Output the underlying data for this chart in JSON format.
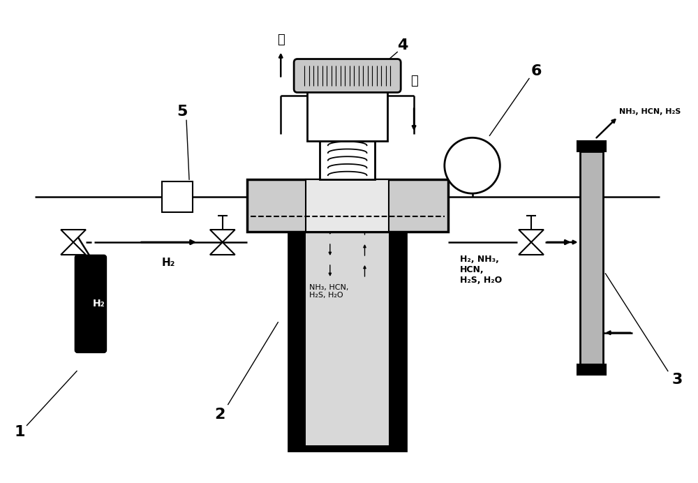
{
  "bg_color": "#ffffff",
  "H2_cylinder_label": "H₂",
  "H2_flow_label": "H₂",
  "H2_products_label": "H₂, NH₃,\nHCN,\nH₂S, H₂O",
  "reactor_contents_label": "NH₃, HCN,\nH₂S, H₂O",
  "absorber_top_label": "NH₃, HCN, H₂S",
  "water_left_label": "水",
  "water_right_label": "水"
}
